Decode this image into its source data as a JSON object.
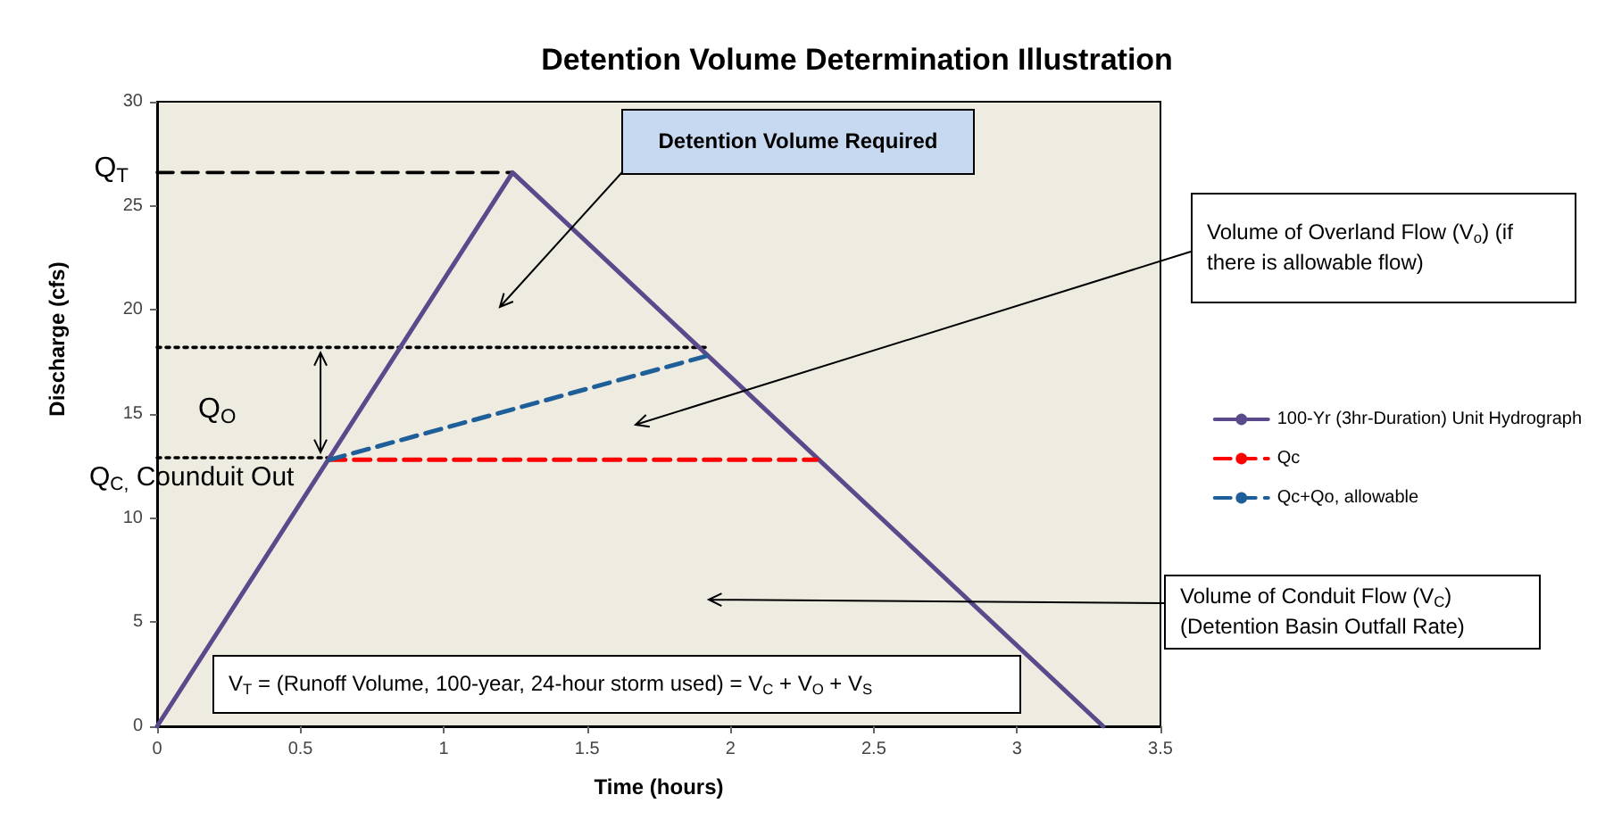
{
  "chart_data": {
    "type": "line",
    "title": "Detention Volume Determination Illustration",
    "xlabel": "Time (hours)",
    "ylabel": "Discharge (cfs)",
    "xlim": [
      0,
      3.5
    ],
    "xticks": [
      0,
      0.5,
      1,
      1.5,
      2,
      2.5,
      3,
      3.5
    ],
    "ylim": [
      0,
      30
    ],
    "yticks": [
      0,
      5,
      10,
      15,
      20,
      25,
      30
    ],
    "grid": false,
    "legend": "right",
    "marker": "none",
    "series": [
      {
        "name": "100-Yr (3hr-Duration) Unit Hydrograph",
        "color": "#5b4a8b",
        "x": [
          0,
          1.24,
          3.3
        ],
        "values": [
          0,
          26.6,
          0
        ],
        "line_style": "solid"
      },
      {
        "name": "Qc",
        "color": "#ff0000",
        "x": [
          0.6,
          2.3
        ],
        "values": [
          12.8,
          12.8
        ],
        "line_style": "dashed"
      },
      {
        "name": "Qc+Qo, allowable",
        "color": "#1f5f99",
        "x": [
          0.6,
          1.92
        ],
        "values": [
          12.8,
          17.8
        ],
        "line_style": "dashed"
      },
      {
        "color": "#000000",
        "x": [
          0,
          1.24
        ],
        "values": [
          26.6,
          26.6
        ],
        "line_style": "dashed"
      },
      {
        "color": "#000000",
        "x": [
          0,
          1.92
        ],
        "values": [
          18.2,
          18.2
        ],
        "line_style": "dotted"
      },
      {
        "color": "#000000",
        "x": [
          0,
          0.6
        ],
        "values": [
          12.9,
          12.9
        ],
        "line_style": "dotted"
      }
    ],
    "annotations": [
      {
        "text": "Q$_{T}$",
        "x": 0,
        "y": 26.6
      },
      "Q$_{O}$",
      {
        "text": "Q$_{C,}$ Counduit Out",
        "x": 0,
        "y": 12.9
      },
      "Detention Volume Required",
      "Volume of Overland Flow (V$_{o}$)  (if there is allowable flow)",
      "Volume of Conduit Flow (V$_{C}$) (Detention Basin Outfall Rate)",
      "V$_{T}$ =  (Runoff Volume, 100-year, 24-hour storm used) = V$_{C}$ + V$_{O}$ + V$_{S}$"
    ]
  }
}
